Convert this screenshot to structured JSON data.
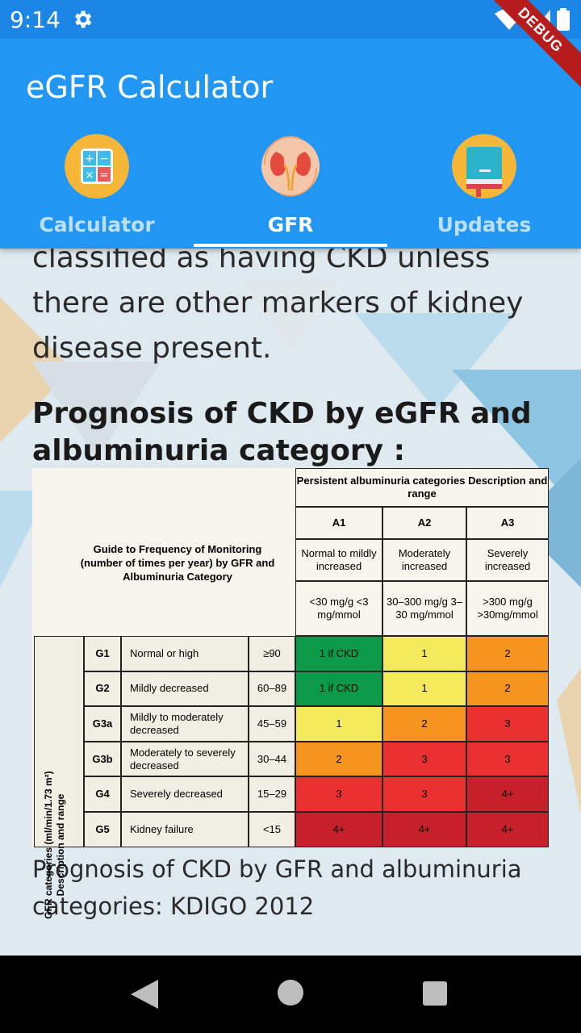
{
  "status_bar": {
    "time": "9:14",
    "debug_label": "DEBUG"
  },
  "app_bar": {
    "title": "eGFR Calculator",
    "tabs": [
      {
        "label": "Calculator",
        "icon": "calculator-icon",
        "active": false
      },
      {
        "label": "GFR",
        "icon": "kidney-icon",
        "active": true
      },
      {
        "label": "Updates",
        "icon": "book-icon",
        "active": false
      }
    ]
  },
  "content": {
    "body_text": "classified as having CKD unless there are other markers of kidney disease present.",
    "heading": "Prognosis of CKD by eGFR and albuminuria category :",
    "caption": "Prognosis of CKD by GFR and albuminuria categories: KDIGO 2012",
    "table": {
      "guide_title": "Guide to Frequency of Monitoring (number of times per year) by GFR and Albuminuria Category",
      "albuminuria_header": "Persistent albuminuria categories Description  and range",
      "gfr_axis_label": "GFR categories (ml/min/1.73 m²) Description and range",
      "albuminuria_cols": [
        {
          "code": "A1",
          "desc": "Normal to mildly increased",
          "range": "<30 mg/g <3 mg/mmol"
        },
        {
          "code": "A2",
          "desc": "Moderately increased",
          "range": "30–300 mg/g 3–30 mg/mmol"
        },
        {
          "code": "A3",
          "desc": "Severely increased",
          "range": ">300 mg/g >30mg/mmol"
        }
      ],
      "rows": [
        {
          "code": "G1",
          "desc": "Normal or high",
          "range": "≥90",
          "values": [
            "1 if CKD",
            "1",
            "2"
          ]
        },
        {
          "code": "G2",
          "desc": "Mildly decreased",
          "range": "60–89",
          "values": [
            "1 if CKD",
            "1",
            "2"
          ]
        },
        {
          "code": "G3a",
          "desc": "Mildly to moderately decreased",
          "range": "45–59",
          "values": [
            "1",
            "2",
            "3"
          ]
        },
        {
          "code": "G3b",
          "desc": "Moderately to severely decreased",
          "range": "30–44",
          "values": [
            "2",
            "3",
            "3"
          ]
        },
        {
          "code": "G4",
          "desc": "Severely decreased",
          "range": "15–29",
          "values": [
            "3",
            "3",
            "4+"
          ]
        },
        {
          "code": "G5",
          "desc": "Kidney failure",
          "range": "<15",
          "values": [
            "4+",
            "4+",
            "4+"
          ]
        }
      ],
      "colors": {
        "green": "#0a9a48",
        "yellow": "#f4eb5c",
        "orange": "#f5941e",
        "red": "#ea3030",
        "dark_red": "#c6202a"
      },
      "row_colors": [
        [
          "green",
          "yellow",
          "orange"
        ],
        [
          "green",
          "yellow",
          "orange"
        ],
        [
          "yellow",
          "orange",
          "red"
        ],
        [
          "orange",
          "red",
          "red"
        ],
        [
          "red",
          "red",
          "dark_red"
        ],
        [
          "dark_red",
          "dark_red",
          "dark_red"
        ]
      ]
    }
  }
}
